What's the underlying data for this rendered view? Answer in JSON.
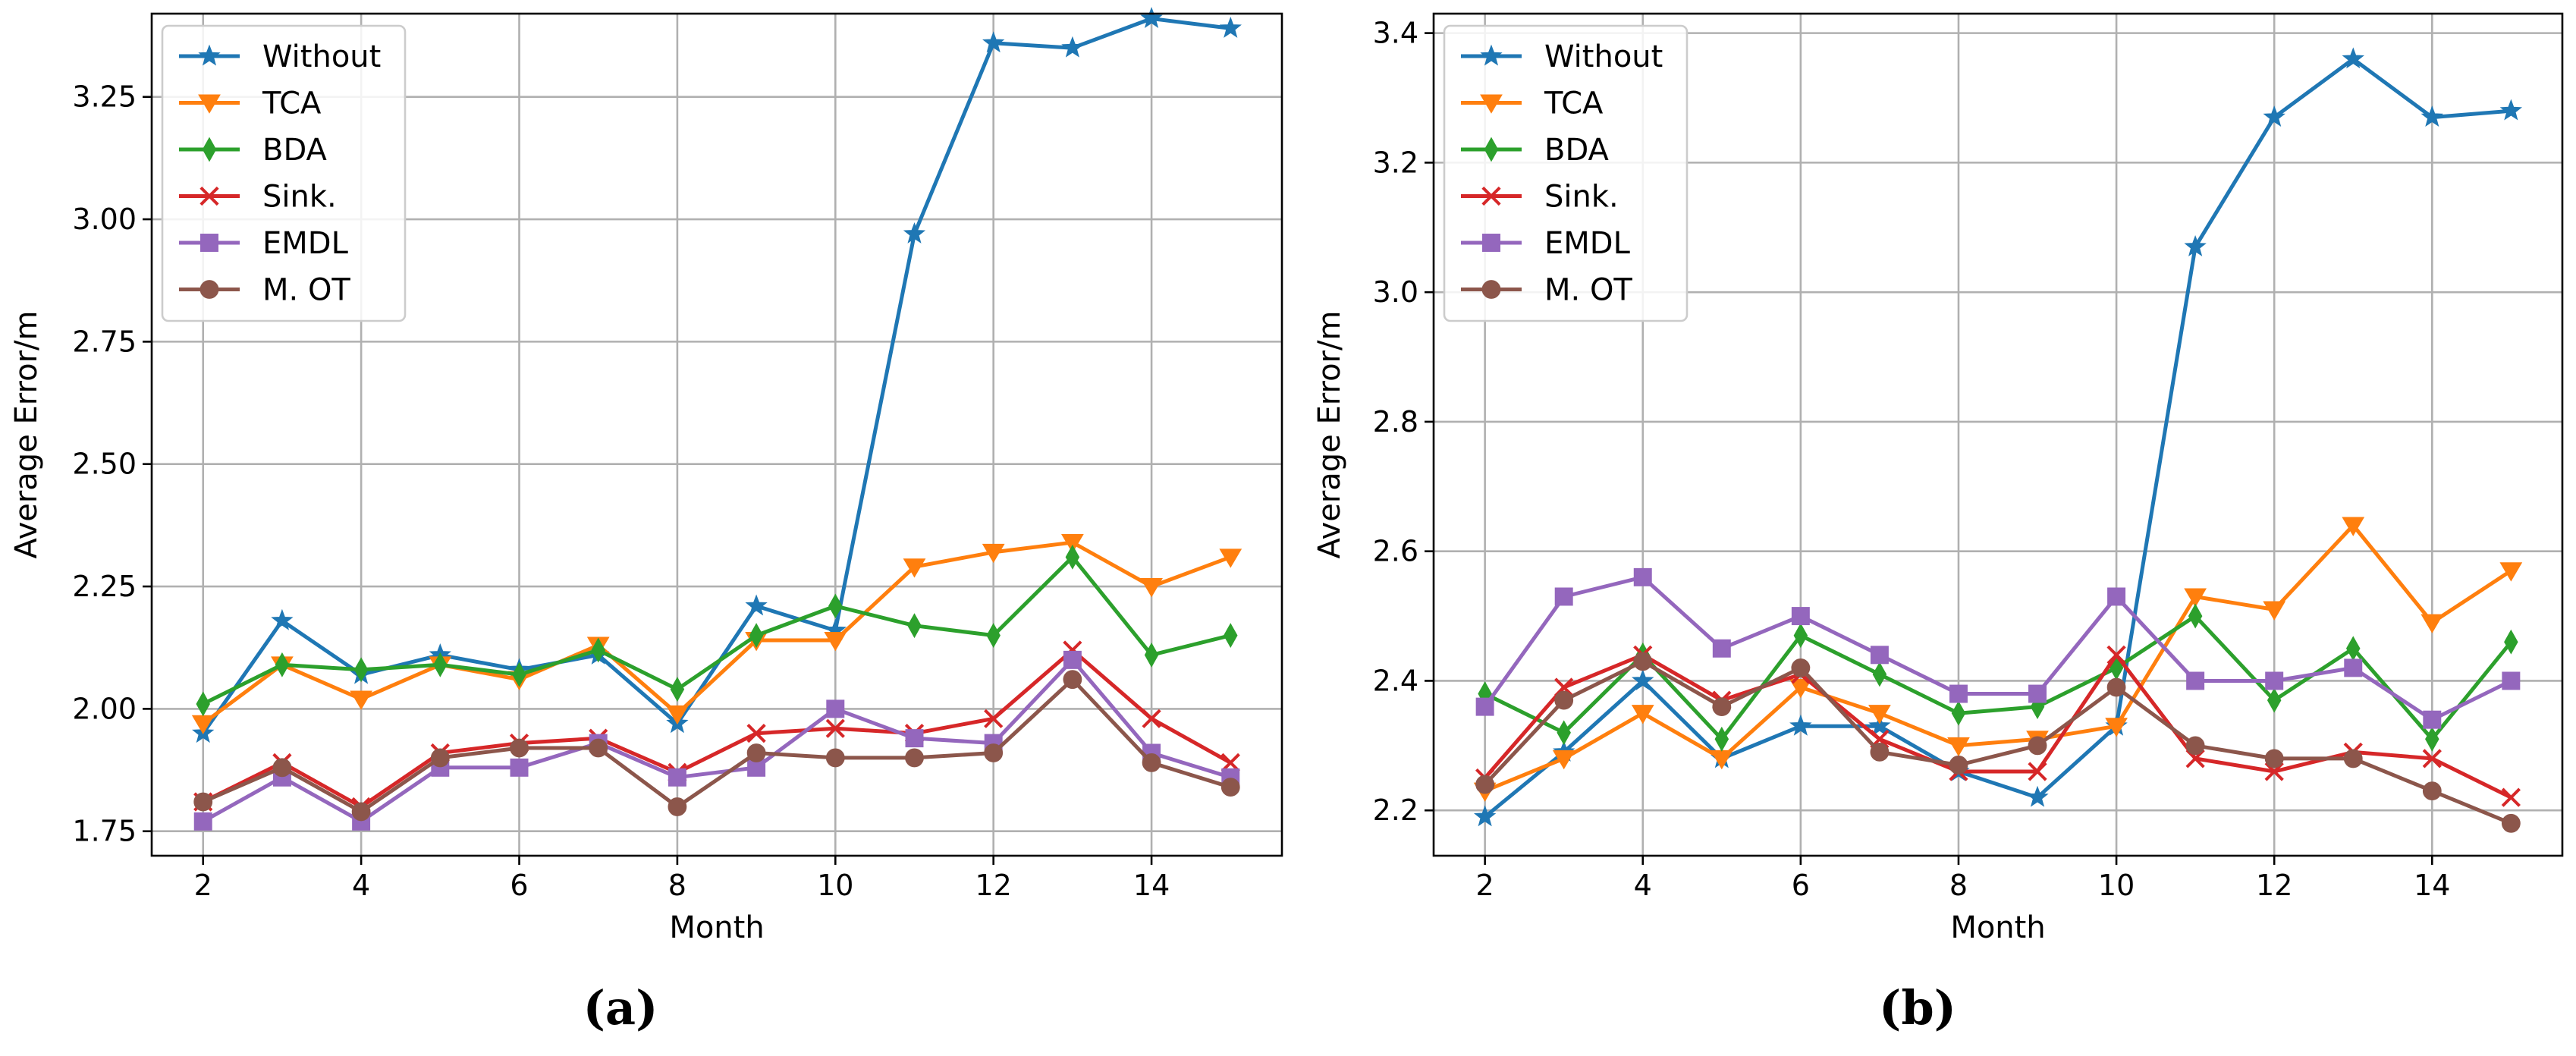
{
  "chart_data": [
    {
      "type": "line",
      "caption": "(a)",
      "xlabel": "Month",
      "ylabel": "Average Error/m",
      "xlim": [
        1.35,
        15.65
      ],
      "ylim": [
        1.7,
        3.42
      ],
      "xticks": [
        2,
        4,
        6,
        8,
        10,
        12,
        14
      ],
      "yticks": [
        1.75,
        2.0,
        2.25,
        2.5,
        2.75,
        3.0,
        3.25
      ],
      "ytick_labels": [
        "1.75",
        "2.00",
        "2.25",
        "2.50",
        "2.75",
        "3.00",
        "3.25"
      ],
      "xtick_labels": [
        "2",
        "4",
        "6",
        "8",
        "10",
        "12",
        "14"
      ],
      "grid": true,
      "legend_position": "top-left",
      "x": [
        2,
        3,
        4,
        5,
        6,
        7,
        8,
        9,
        10,
        11,
        12,
        13,
        14,
        15
      ],
      "series": [
        {
          "name": "Without",
          "color": "#1f77b4",
          "marker": "star",
          "values": [
            1.95,
            2.18,
            2.07,
            2.11,
            2.08,
            2.11,
            1.97,
            2.21,
            2.16,
            2.97,
            3.36,
            3.35,
            3.41,
            3.39
          ]
        },
        {
          "name": "TCA",
          "color": "#ff7f0e",
          "marker": "triangle-down",
          "values": [
            1.97,
            2.09,
            2.02,
            2.09,
            2.06,
            2.13,
            1.99,
            2.14,
            2.14,
            2.29,
            2.32,
            2.34,
            2.25,
            2.31
          ]
        },
        {
          "name": "BDA",
          "color": "#2ca02c",
          "marker": "diamond",
          "values": [
            2.01,
            2.09,
            2.08,
            2.09,
            2.07,
            2.12,
            2.04,
            2.15,
            2.21,
            2.17,
            2.15,
            2.31,
            2.11,
            2.15
          ]
        },
        {
          "name": "Sink.",
          "color": "#d62728",
          "marker": "x",
          "values": [
            1.81,
            1.89,
            1.8,
            1.91,
            1.93,
            1.94,
            1.87,
            1.95,
            1.96,
            1.95,
            1.98,
            2.12,
            1.98,
            1.89
          ]
        },
        {
          "name": "EMDL",
          "color": "#9467bd",
          "marker": "square",
          "values": [
            1.77,
            1.86,
            1.77,
            1.88,
            1.88,
            1.93,
            1.86,
            1.88,
            2.0,
            1.94,
            1.93,
            2.1,
            1.91,
            1.86
          ]
        },
        {
          "name": "M. OT",
          "color": "#8c564b",
          "marker": "circle",
          "values": [
            1.81,
            1.88,
            1.79,
            1.9,
            1.92,
            1.92,
            1.8,
            1.91,
            1.9,
            1.9,
            1.91,
            2.06,
            1.89,
            1.84
          ]
        }
      ]
    },
    {
      "type": "line",
      "caption": "(b)",
      "xlabel": "Month",
      "ylabel": "Average Error/m",
      "xlim": [
        1.35,
        15.65
      ],
      "ylim": [
        2.13,
        3.43
      ],
      "xticks": [
        2,
        4,
        6,
        8,
        10,
        12,
        14
      ],
      "yticks": [
        2.2,
        2.4,
        2.6,
        2.8,
        3.0,
        3.2,
        3.4
      ],
      "ytick_labels": [
        "2.2",
        "2.4",
        "2.6",
        "2.8",
        "3.0",
        "3.2",
        "3.4"
      ],
      "xtick_labels": [
        "2",
        "4",
        "6",
        "8",
        "10",
        "12",
        "14"
      ],
      "grid": true,
      "legend_position": "top-left",
      "x": [
        2,
        3,
        4,
        5,
        6,
        7,
        8,
        9,
        10,
        11,
        12,
        13,
        14,
        15
      ],
      "series": [
        {
          "name": "Without",
          "color": "#1f77b4",
          "marker": "star",
          "values": [
            2.19,
            2.29,
            2.4,
            2.28,
            2.33,
            2.33,
            2.26,
            2.22,
            2.33,
            3.07,
            3.27,
            3.36,
            3.27,
            3.28
          ]
        },
        {
          "name": "TCA",
          "color": "#ff7f0e",
          "marker": "triangle-down",
          "values": [
            2.23,
            2.28,
            2.35,
            2.28,
            2.39,
            2.35,
            2.3,
            2.31,
            2.33,
            2.53,
            2.51,
            2.64,
            2.49,
            2.57
          ]
        },
        {
          "name": "BDA",
          "color": "#2ca02c",
          "marker": "diamond",
          "values": [
            2.38,
            2.32,
            2.44,
            2.31,
            2.47,
            2.41,
            2.35,
            2.36,
            2.42,
            2.5,
            2.37,
            2.45,
            2.31,
            2.46
          ]
        },
        {
          "name": "Sink.",
          "color": "#d62728",
          "marker": "x",
          "values": [
            2.25,
            2.39,
            2.44,
            2.37,
            2.41,
            2.31,
            2.26,
            2.26,
            2.44,
            2.28,
            2.26,
            2.29,
            2.28,
            2.22
          ]
        },
        {
          "name": "EMDL",
          "color": "#9467bd",
          "marker": "square",
          "values": [
            2.36,
            2.53,
            2.56,
            2.45,
            2.5,
            2.44,
            2.38,
            2.38,
            2.53,
            2.4,
            2.4,
            2.42,
            2.34,
            2.4
          ]
        },
        {
          "name": "M. OT",
          "color": "#8c564b",
          "marker": "circle",
          "values": [
            2.24,
            2.37,
            2.43,
            2.36,
            2.42,
            2.29,
            2.27,
            2.3,
            2.39,
            2.3,
            2.28,
            2.28,
            2.23,
            2.18
          ]
        }
      ]
    }
  ]
}
